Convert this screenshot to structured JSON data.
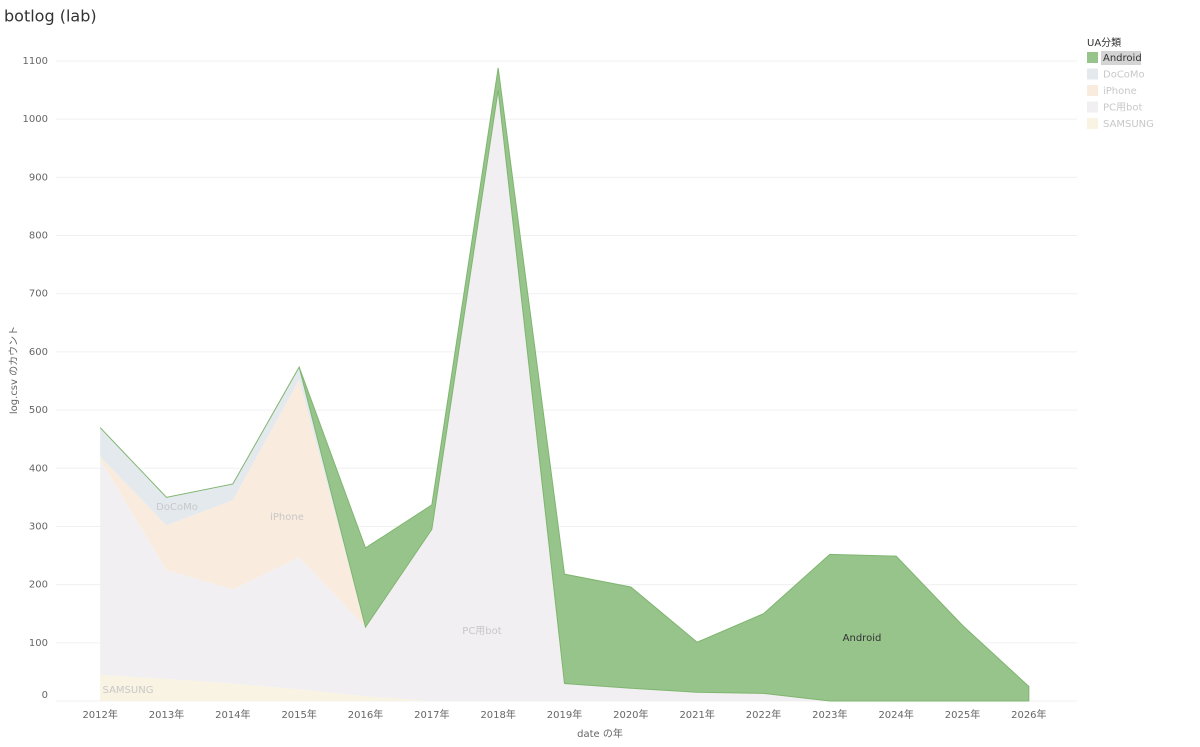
{
  "chart_data": {
    "type": "stacked-area",
    "title": "botlog (lab)",
    "x_label": "date の年",
    "y_label": "log.csv のカウント",
    "legend_title": "UA分類",
    "categories": [
      "2012年",
      "2013年",
      "2014年",
      "2015年",
      "2016年",
      "2017年",
      "2018年",
      "2019年",
      "2020年",
      "2021年",
      "2022年",
      "2023年",
      "2024年",
      "2025年",
      "2026年"
    ],
    "series": [
      {
        "name": "SAMSUNG",
        "color": "#f8f3e2",
        "values": [
          45,
          38,
          30,
          20,
          8,
          0,
          0,
          0,
          0,
          0,
          0,
          0,
          0,
          0,
          0
        ]
      },
      {
        "name": "PC用bot",
        "color": "#f1eff1",
        "values": [
          370,
          187,
          162,
          227,
          119,
          295,
          1050,
          30,
          22,
          15,
          13,
          0,
          0,
          0,
          0
        ]
      },
      {
        "name": "iPhone",
        "color": "#f9ecde",
        "values": [
          5,
          77,
          153,
          305,
          0,
          0,
          0,
          0,
          0,
          0,
          0,
          0,
          0,
          0,
          0
        ]
      },
      {
        "name": "DoCoMo",
        "color": "#e4e9ee",
        "values": [
          50,
          48,
          28,
          22,
          0,
          0,
          0,
          0,
          0,
          0,
          0,
          0,
          0,
          0,
          0
        ]
      },
      {
        "name": "Android",
        "color": "#97c48b",
        "values": [
          0,
          0,
          0,
          0,
          136,
          42,
          38,
          188,
          174,
          86,
          137,
          252,
          249,
          130,
          25
        ]
      }
    ],
    "ylim": [
      0,
      1100
    ],
    "yticks": [
      0,
      100,
      200,
      300,
      400,
      500,
      600,
      700,
      800,
      900,
      1000,
      1100
    ],
    "grid": true,
    "highlight": "Android"
  }
}
